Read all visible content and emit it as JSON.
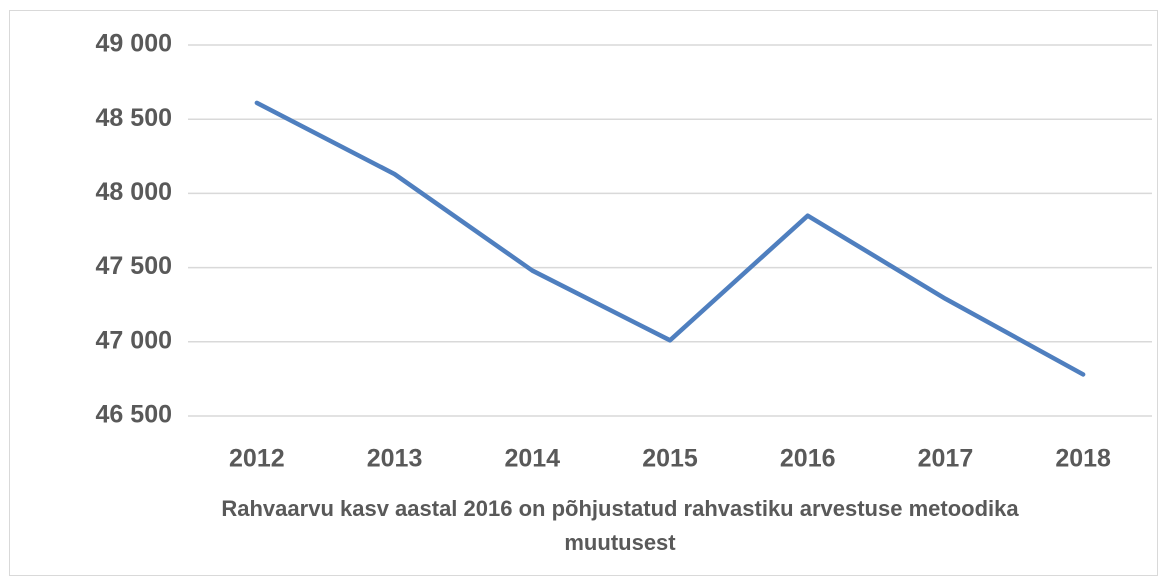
{
  "chart_data": {
    "type": "line",
    "categories": [
      "2012",
      "2013",
      "2014",
      "2015",
      "2016",
      "2017",
      "2018"
    ],
    "values": [
      48610,
      48130,
      47480,
      47010,
      47850,
      47290,
      46780
    ],
    "color": "#4f7fbf",
    "ylim": [
      46500,
      49000
    ],
    "yticks": [
      {
        "value": 46500,
        "label": "46 500"
      },
      {
        "value": 47000,
        "label": "47 000"
      },
      {
        "value": 47500,
        "label": "47 500"
      },
      {
        "value": 48000,
        "label": "48 000"
      },
      {
        "value": 48500,
        "label": "48 500"
      },
      {
        "value": 49000,
        "label": "49 000"
      }
    ],
    "grid": true,
    "x_label": "Rahvaarvu kasv aastal 2016 on põhjustatud rahvastiku arvestuse metoodika muutusest"
  }
}
